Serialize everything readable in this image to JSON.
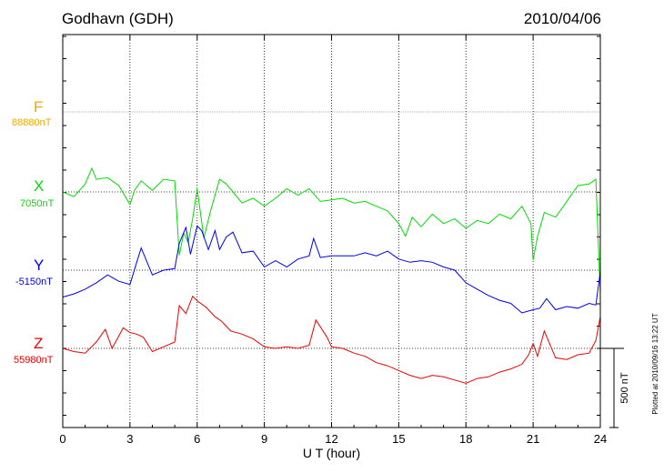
{
  "header": {
    "station": "Godhavn (GDH)",
    "date": "2010/04/06"
  },
  "footer": {
    "plotted_at": "Plotted at 2010/09/16 13:22 UT"
  },
  "colors": {
    "F": "#f0a800",
    "X": "#00dd00",
    "Y": "#0000ee",
    "Z": "#ee0000",
    "grid": "#000000"
  },
  "chart_data": {
    "type": "line",
    "title": "Godhavn (GDH)",
    "date": "2010/04/06",
    "xlabel": "U T (hour)",
    "xlim": [
      0,
      24
    ],
    "xticks": [
      0,
      3,
      6,
      9,
      12,
      15,
      18,
      21,
      24
    ],
    "grid": true,
    "scale_bar": {
      "label": "500 nT",
      "value": 500
    },
    "components": [
      {
        "key": "F",
        "name": "F",
        "baseline_label": "88880nT",
        "baseline": 88880
      },
      {
        "key": "X",
        "name": "X",
        "baseline_label": "7050nT",
        "baseline": 7050
      },
      {
        "key": "Y",
        "name": "Y",
        "baseline_label": "-5150nT",
        "baseline": -5150
      },
      {
        "key": "Z",
        "name": "Z",
        "baseline_label": "55980nT",
        "baseline": 55980
      }
    ],
    "series": [
      {
        "name": "F",
        "x": [
          0,
          24
        ],
        "values": [
          88880,
          88880
        ]
      },
      {
        "name": "X",
        "x": [
          0,
          0.5,
          1,
          1.3,
          1.5,
          2,
          2.5,
          3,
          3.2,
          3.5,
          4,
          4.5,
          5,
          5.2,
          5.4,
          5.6,
          5.8,
          6,
          6.3,
          6.6,
          7,
          7.3,
          7.6,
          8,
          8.5,
          9,
          9.5,
          10,
          10.5,
          11,
          11.5,
          12,
          12.5,
          13,
          13.5,
          14,
          14.5,
          15,
          15.3,
          15.6,
          16,
          16.5,
          17,
          17.5,
          18,
          18.5,
          19,
          19.5,
          20,
          20.5,
          20.9,
          21,
          21.2,
          21.5,
          22,
          22.5,
          23,
          23.5,
          23.8,
          24
        ],
        "values": [
          7050,
          7020,
          7100,
          7200,
          7130,
          7140,
          7090,
          6970,
          7060,
          7120,
          7060,
          7130,
          7120,
          6650,
          6790,
          6730,
          6880,
          7070,
          6760,
          6930,
          7130,
          7100,
          7050,
          6980,
          7010,
          6960,
          7010,
          7070,
          7030,
          7070,
          6990,
          7000,
          7010,
          6980,
          6990,
          6960,
          6930,
          6850,
          6770,
          6890,
          6830,
          6910,
          6850,
          6880,
          6820,
          6870,
          6850,
          6910,
          6880,
          6960,
          6850,
          6620,
          6770,
          6920,
          6890,
          6990,
          7090,
          7100,
          7130,
          6400
        ]
      },
      {
        "name": "Y",
        "x": [
          0,
          0.5,
          1,
          1.5,
          2,
          2.5,
          3,
          3.3,
          3.5,
          4,
          4.5,
          5,
          5.2,
          5.5,
          5.7,
          6,
          6.2,
          6.5,
          6.8,
          7,
          7.3,
          7.6,
          8,
          8.5,
          9,
          9.5,
          10,
          10.5,
          11,
          11.2,
          11.5,
          12,
          12.5,
          13,
          13.5,
          14,
          14.5,
          15,
          15.5,
          16,
          16.5,
          17,
          17.5,
          18,
          18.5,
          19,
          19.5,
          20,
          20.5,
          21,
          21.3,
          21.6,
          22,
          22.5,
          23,
          23.5,
          23.8,
          24
        ],
        "values": [
          -5320,
          -5300,
          -5270,
          -5230,
          -5180,
          -5220,
          -5240,
          -5100,
          -5010,
          -5180,
          -5150,
          -5140,
          -4980,
          -4880,
          -5050,
          -4870,
          -4900,
          -5020,
          -4900,
          -5020,
          -4940,
          -4910,
          -5040,
          -5030,
          -5130,
          -5090,
          -5130,
          -5080,
          -5060,
          -4950,
          -5070,
          -5060,
          -5060,
          -5060,
          -5040,
          -5060,
          -5030,
          -5080,
          -5100,
          -5090,
          -5100,
          -5130,
          -5150,
          -5230,
          -5270,
          -5310,
          -5340,
          -5360,
          -5420,
          -5400,
          -5390,
          -5330,
          -5400,
          -5380,
          -5390,
          -5360,
          -5370,
          -5160
        ]
      },
      {
        "name": "Z",
        "x": [
          0,
          0.5,
          1,
          1.5,
          1.9,
          2.2,
          2.7,
          3,
          3.3,
          3.6,
          4,
          4.5,
          5,
          5.2,
          5.5,
          5.8,
          6,
          6.4,
          6.8,
          7.1,
          7.5,
          8,
          8.5,
          9,
          9.5,
          10,
          10.5,
          11,
          11.3,
          11.8,
          12,
          12.5,
          13,
          13.5,
          14,
          14.5,
          15,
          15.5,
          16,
          16.5,
          17,
          17.5,
          18,
          18.5,
          19,
          19.5,
          20,
          20.5,
          20.8,
          21,
          21.2,
          21.5,
          22,
          22.5,
          23,
          23.5,
          23.8,
          24
        ],
        "values": [
          55980,
          55960,
          55950,
          56020,
          56100,
          55980,
          56110,
          56080,
          56070,
          56050,
          55960,
          55990,
          56020,
          56250,
          56200,
          56310,
          56280,
          56240,
          56180,
          56150,
          56090,
          56070,
          56040,
          55990,
          55980,
          55990,
          55980,
          56000,
          56160,
          56050,
          55990,
          55980,
          55950,
          55930,
          55890,
          55870,
          55840,
          55810,
          55790,
          55810,
          55800,
          55780,
          55760,
          55790,
          55800,
          55830,
          55850,
          55880,
          55940,
          56010,
          55930,
          56090,
          55920,
          55910,
          55940,
          55950,
          56030,
          56180
        ]
      }
    ]
  }
}
